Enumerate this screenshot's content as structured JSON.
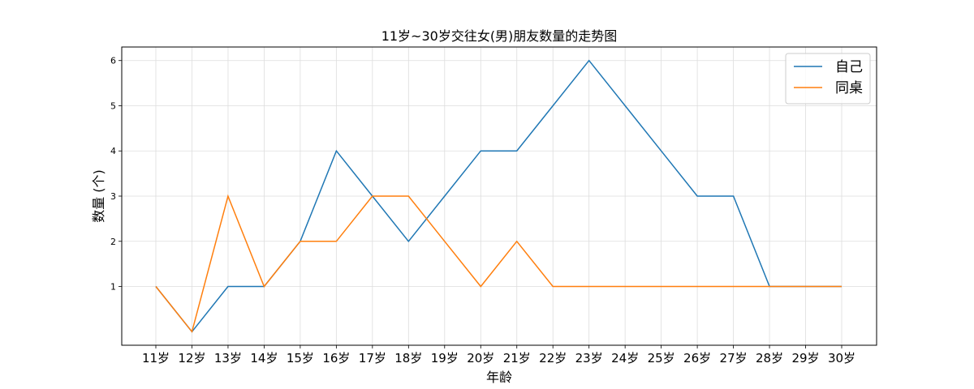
{
  "chart_data": {
    "type": "line",
    "title": "11岁~30岁交往女(男)朋友数量的走势图",
    "xlabel": "年龄",
    "ylabel": "数量 (个)",
    "categories": [
      "11岁",
      "12岁",
      "13岁",
      "14岁",
      "15岁",
      "16岁",
      "17岁",
      "18岁",
      "19岁",
      "20岁",
      "21岁",
      "22岁",
      "23岁",
      "24岁",
      "25岁",
      "26岁",
      "27岁",
      "28岁",
      "29岁",
      "30岁"
    ],
    "yticks": [
      1,
      2,
      3,
      4,
      5,
      6
    ],
    "ylim": [
      -0.3,
      6.3
    ],
    "grid": true,
    "legend_position": "top-right",
    "series": [
      {
        "name": "自己",
        "color": "#1f77b4",
        "values": [
          1,
          0,
          1,
          1,
          2,
          4,
          3,
          2,
          3,
          4,
          4,
          5,
          6,
          5,
          4,
          3,
          3,
          1,
          1,
          1
        ]
      },
      {
        "name": "同桌",
        "color": "#ff7f0e",
        "values": [
          1,
          0,
          3,
          1,
          2,
          2,
          3,
          3,
          2,
          1,
          2,
          1,
          1,
          1,
          1,
          1,
          1,
          1,
          1,
          1
        ]
      }
    ]
  }
}
